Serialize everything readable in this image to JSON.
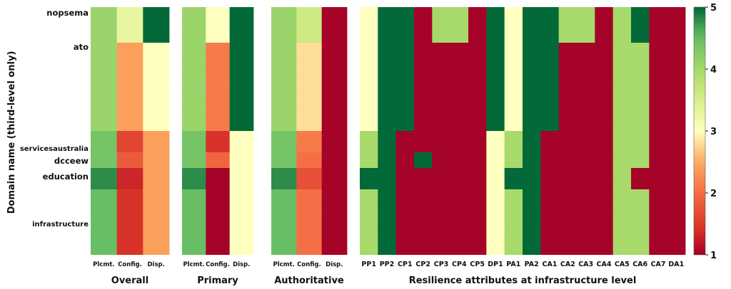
{
  "chart_data": {
    "type": "heatmap",
    "ylabel": "Domain name (third-level only)",
    "y_tick_labels": [
      "nopsema",
      "ato",
      "servicesaustralia",
      "dcceew",
      "education",
      "infrastructure"
    ],
    "panels": [
      {
        "title": "Overall",
        "columns": [
          "Plcmt.",
          "Config.",
          "Disp."
        ]
      },
      {
        "title": "Primary",
        "columns": [
          "Plcmt.",
          "Config.",
          "Disp."
        ]
      },
      {
        "title": "Authoritative",
        "columns": [
          "Plcmt.",
          "Config.",
          "Disp."
        ]
      },
      {
        "title": "Resilience attributes at infrastructure level",
        "columns": [
          "PP1",
          "PP2",
          "CP1",
          "CP2",
          "CP3",
          "CP4",
          "CP5",
          "DP1",
          "PA1",
          "PA2",
          "CA1",
          "CA2",
          "CA3",
          "CA4",
          "CA5",
          "CA6",
          "CA7",
          "DA1"
        ]
      }
    ],
    "colorbar": {
      "min": 1,
      "max": 5,
      "ticks": [
        1,
        2,
        3,
        4,
        5
      ],
      "colormap": "RdYlGn"
    },
    "row_blocks": [
      {
        "domain": "nopsema",
        "overall": [
          4.1,
          3.3,
          5.0
        ],
        "primary": [
          4.1,
          3.0,
          5.0
        ],
        "authoritative": [
          4.1,
          3.6,
          1.0
        ],
        "attributes": [
          3.0,
          5.0,
          5.0,
          1.0,
          4.0,
          4.0,
          1.0,
          5.0,
          3.0,
          5.0,
          5.0,
          4.0,
          4.0,
          1.0,
          4.0,
          5.0,
          1.0,
          1.0
        ]
      },
      {
        "domain": "ato",
        "overall": [
          4.1,
          2.4,
          3.0
        ],
        "primary": [
          4.1,
          2.1,
          5.0
        ],
        "authoritative": [
          4.1,
          2.8,
          1.0
        ],
        "attributes": [
          3.0,
          5.0,
          5.0,
          1.0,
          1.0,
          1.0,
          1.0,
          5.0,
          3.0,
          5.0,
          5.0,
          1.0,
          1.0,
          1.0,
          4.0,
          4.0,
          1.0,
          1.0
        ]
      },
      {
        "domain": "servicesaustralia",
        "overall": [
          4.4,
          1.6,
          2.4
        ],
        "primary": [
          4.4,
          1.4,
          3.0
        ],
        "authoritative": [
          4.4,
          2.1,
          1.0
        ],
        "attributes": [
          4.0,
          5.0,
          1.0,
          1.0,
          1.0,
          1.0,
          1.0,
          3.0,
          4.0,
          5.0,
          1.0,
          1.0,
          1.0,
          1.0,
          4.0,
          4.0,
          1.0,
          1.0
        ]
      },
      {
        "domain": "dcceew",
        "overall": [
          4.4,
          1.8,
          2.4
        ],
        "primary": [
          4.4,
          1.9,
          3.0
        ],
        "authoritative": [
          4.4,
          2.0,
          1.0
        ],
        "attributes": [
          4.0,
          5.0,
          1.0,
          5.0,
          1.0,
          1.0,
          1.0,
          3.0,
          4.0,
          5.0,
          1.0,
          1.0,
          1.0,
          1.0,
          4.0,
          4.0,
          1.0,
          1.0
        ]
      },
      {
        "domain": "education",
        "overall": [
          4.8,
          1.3,
          2.4
        ],
        "primary": [
          4.8,
          1.0,
          3.0
        ],
        "authoritative": [
          4.8,
          1.7,
          1.0
        ],
        "attributes": [
          5.0,
          5.0,
          1.0,
          1.0,
          1.0,
          1.0,
          1.0,
          3.0,
          5.0,
          5.0,
          1.0,
          1.0,
          1.0,
          1.0,
          4.0,
          1.0,
          1.0,
          1.0
        ]
      },
      {
        "domain": "infrastructure",
        "overall": [
          4.5,
          1.4,
          2.4
        ],
        "primary": [
          4.5,
          1.0,
          3.0
        ],
        "authoritative": [
          4.5,
          2.0,
          1.0
        ],
        "attributes": [
          4.0,
          5.0,
          1.0,
          1.0,
          1.0,
          1.0,
          1.0,
          3.0,
          4.0,
          5.0,
          1.0,
          1.0,
          1.0,
          1.0,
          4.0,
          4.0,
          1.0,
          1.0
        ]
      }
    ]
  }
}
